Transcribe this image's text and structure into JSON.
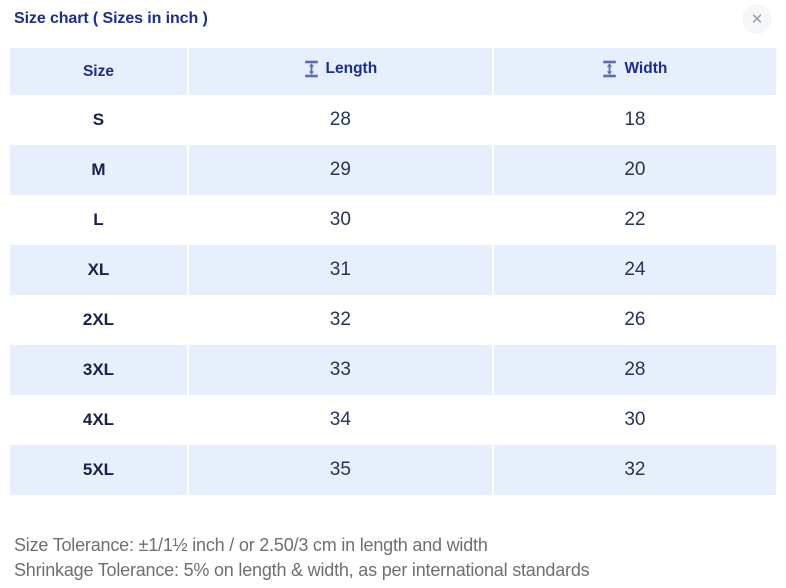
{
  "modal": {
    "title": "Size chart ( Sizes in inch )",
    "close_label": "✕"
  },
  "table": {
    "columns": [
      {
        "label": "Size",
        "icon": null
      },
      {
        "label": "Length",
        "icon": "measure-vertical-icon"
      },
      {
        "label": "Width",
        "icon": "measure-vertical-icon"
      }
    ],
    "rows": [
      {
        "size": "S",
        "length": "28",
        "width": "18"
      },
      {
        "size": "M",
        "length": "29",
        "width": "20"
      },
      {
        "size": "L",
        "length": "30",
        "width": "22"
      },
      {
        "size": "XL",
        "length": "31",
        "width": "24"
      },
      {
        "size": "2XL",
        "length": "32",
        "width": "26"
      },
      {
        "size": "3XL",
        "length": "33",
        "width": "28"
      },
      {
        "size": "4XL",
        "length": "34",
        "width": "30"
      },
      {
        "size": "5XL",
        "length": "35",
        "width": "32"
      }
    ]
  },
  "footer": {
    "size_tolerance": "Size Tolerance: ±1/1½ inch / or 2.50/3 cm in length and width",
    "shrinkage_tolerance": "Shrinkage Tolerance: 5% on length & width, as per international standards"
  },
  "colors": {
    "accent_navy": "#1b2d8f",
    "alt_row_bg": "#e7effc",
    "icon_blue": "#5b6ab8",
    "footer_gray": "#6f6f6f"
  }
}
